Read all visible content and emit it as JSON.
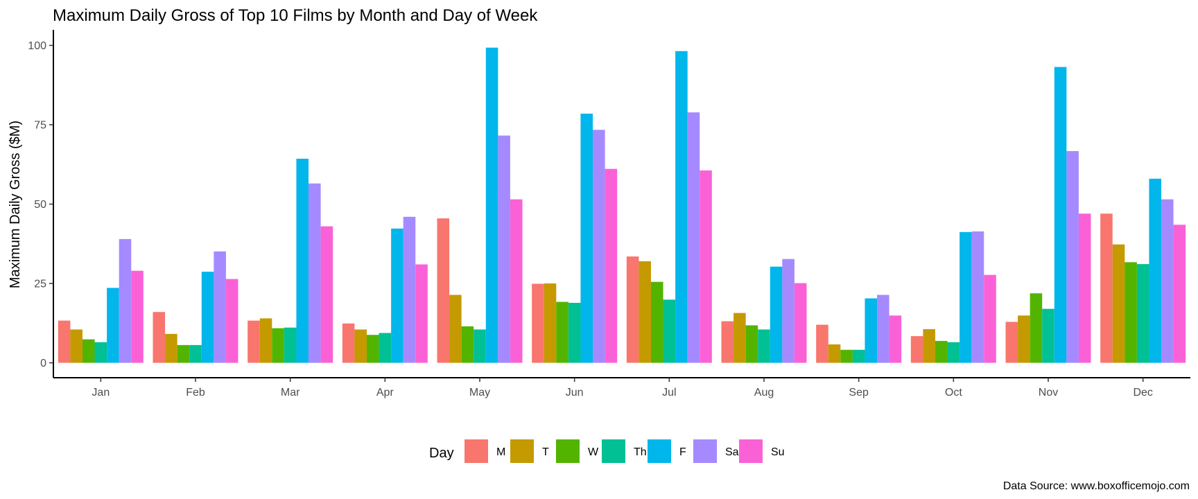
{
  "chart_data": {
    "type": "bar",
    "title": "Maximum Daily Gross of Top 10 Films by Month and Day of Week",
    "xlabel": "",
    "ylabel": "Maximum Daily Gross ($M)",
    "ylim": [
      0,
      100
    ],
    "yticks": [
      "0",
      "25",
      "50",
      "75",
      "100"
    ],
    "ytick_values": [
      0,
      25,
      50,
      75,
      100
    ],
    "grid": false,
    "categories": [
      "Jan",
      "Feb",
      "Mar",
      "Apr",
      "May",
      "Jun",
      "Jul",
      "Aug",
      "Sep",
      "Oct",
      "Nov",
      "Dec"
    ],
    "legend": {
      "title": "Day",
      "position": "bottom"
    },
    "series": [
      {
        "name": "M",
        "color": "#F8766D",
        "values": [
          13.3,
          16.0,
          13.3,
          12.4,
          45.5,
          24.9,
          33.5,
          13.1,
          12.0,
          8.4,
          12.9,
          47.0
        ]
      },
      {
        "name": "T",
        "color": "#C49A00",
        "values": [
          10.5,
          9.1,
          14.0,
          10.5,
          21.4,
          25.0,
          32.0,
          15.7,
          5.8,
          10.6,
          14.9,
          37.3
        ]
      },
      {
        "name": "W",
        "color": "#53B400",
        "values": [
          7.4,
          5.6,
          10.9,
          8.8,
          11.5,
          19.2,
          25.5,
          11.8,
          4.1,
          6.9,
          21.9,
          31.7
        ]
      },
      {
        "name": "Th",
        "color": "#00C094",
        "values": [
          6.5,
          5.6,
          11.1,
          9.4,
          10.5,
          18.9,
          19.9,
          10.5,
          4.1,
          6.5,
          17.0,
          31.1
        ]
      },
      {
        "name": "F",
        "color": "#00B6EB",
        "values": [
          23.6,
          28.7,
          64.3,
          42.3,
          99.3,
          78.5,
          98.2,
          30.3,
          20.3,
          41.2,
          93.2,
          58.0
        ]
      },
      {
        "name": "Sa",
        "color": "#A58AFF",
        "values": [
          39.0,
          35.1,
          56.5,
          46.0,
          71.6,
          73.4,
          78.9,
          32.7,
          21.4,
          41.4,
          66.7,
          51.5
        ]
      },
      {
        "name": "Su",
        "color": "#FB61D7",
        "values": [
          29.0,
          26.4,
          43.0,
          31.0,
          51.5,
          61.1,
          60.6,
          25.1,
          14.9,
          27.7,
          47.0,
          43.5
        ]
      }
    ],
    "caption": "Data Source: www.boxofficemojo.com"
  }
}
